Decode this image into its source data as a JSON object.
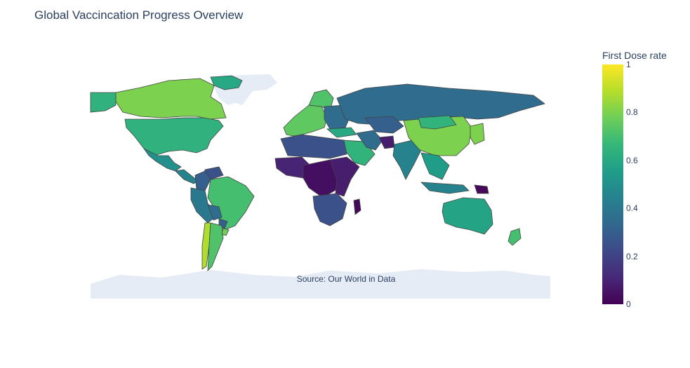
{
  "title": "Global Vaccincation Progress Overview",
  "annotation": "Source: Our World in Data",
  "colorbar": {
    "title": "First Dose rate",
    "colorscale": "viridis",
    "colors": [
      "#440154",
      "#482878",
      "#3e4989",
      "#31688e",
      "#26828e",
      "#1f9e89",
      "#35b779",
      "#6ece58",
      "#b5de2b",
      "#fde725"
    ],
    "range": [
      0,
      1
    ],
    "ticks": [
      "0",
      "0.2",
      "0.4",
      "0.6",
      "0.8",
      "1"
    ]
  },
  "map": {
    "projection": "natural earth",
    "land_color": "#e5ecf6",
    "border_color": "#444444"
  },
  "chart_data": {
    "type": "choropleth",
    "title": "Global Vaccincation Progress Overview",
    "colorbar_title": "First Dose rate",
    "zrange": [
      0,
      1
    ],
    "regions": [
      {
        "region": "Canada",
        "value": 0.8
      },
      {
        "region": "United States",
        "value": 0.64
      },
      {
        "region": "Greenland",
        "value": 0.6
      },
      {
        "region": "Alaska (US)",
        "value": 0.64
      },
      {
        "region": "Mexico",
        "value": 0.5
      },
      {
        "region": "Central America",
        "value": 0.45
      },
      {
        "region": "Venezuela",
        "value": 0.25
      },
      {
        "region": "Colombia",
        "value": 0.3
      },
      {
        "region": "Ecuador / Peru",
        "value": 0.4
      },
      {
        "region": "Brazil",
        "value": 0.7
      },
      {
        "region": "Bolivia",
        "value": 0.35
      },
      {
        "region": "Paraguay",
        "value": 0.3
      },
      {
        "region": "Chile",
        "value": 0.88
      },
      {
        "region": "Argentina",
        "value": 0.72
      },
      {
        "region": "Uruguay",
        "value": 0.78
      },
      {
        "region": "Europe (West)",
        "value": 0.75
      },
      {
        "region": "Scandinavia",
        "value": 0.72
      },
      {
        "region": "Eastern Europe",
        "value": 0.35
      },
      {
        "region": "Russia",
        "value": 0.35
      },
      {
        "region": "Turkey",
        "value": 0.6
      },
      {
        "region": "Saudi Arabia / Gulf",
        "value": 0.65
      },
      {
        "region": "Iran",
        "value": 0.35
      },
      {
        "region": "Central Asia",
        "value": 0.3
      },
      {
        "region": "Afghanistan",
        "value": 0.08
      },
      {
        "region": "India",
        "value": 0.45
      },
      {
        "region": "China",
        "value": 0.8
      },
      {
        "region": "Mongolia",
        "value": 0.65
      },
      {
        "region": "Japan / Korea",
        "value": 0.8
      },
      {
        "region": "Southeast Asia",
        "value": 0.55
      },
      {
        "region": "Indonesia",
        "value": 0.45
      },
      {
        "region": "Papua New Guinea",
        "value": 0.02
      },
      {
        "region": "Australia",
        "value": 0.58
      },
      {
        "region": "New Zealand",
        "value": 0.7
      },
      {
        "region": "North Africa",
        "value": 0.25
      },
      {
        "region": "West Africa",
        "value": 0.1
      },
      {
        "region": "Central Africa",
        "value": 0.04
      },
      {
        "region": "East Africa",
        "value": 0.08
      },
      {
        "region": "Southern Africa",
        "value": 0.25
      },
      {
        "region": "Madagascar",
        "value": 0.02
      }
    ]
  }
}
